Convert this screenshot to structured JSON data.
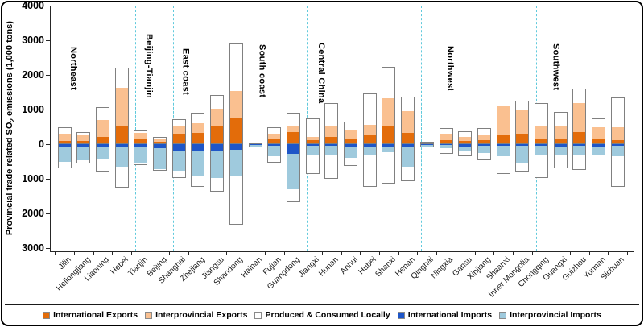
{
  "figure": {
    "y_axis": {
      "title_main": "Provincial trade related SO",
      "title_sub": "2",
      "title_rest": " emissions  (1,000 tons)",
      "ticks": [
        {
          "value": 4000,
          "label": "4000"
        },
        {
          "value": 3000,
          "label": "3000"
        },
        {
          "value": 2000,
          "label": "2000"
        },
        {
          "value": 1000,
          "label": "1000"
        },
        {
          "value": 0,
          "label": "0"
        },
        {
          "value": -1000,
          "label": "1000"
        },
        {
          "value": -2000,
          "label": "2000"
        },
        {
          "value": -3000,
          "label": "3000"
        }
      ]
    },
    "legend": [
      {
        "label": "International Exports",
        "color": "#E36C0A"
      },
      {
        "label": "Interprovincial Exports",
        "color": "#FAC090"
      },
      {
        "label": "Produced & Consumed Locally",
        "color": "#FFFFFF"
      },
      {
        "label": "International Imports",
        "color": "#1E56C8"
      },
      {
        "label": "Interprovincial Imports",
        "color": "#9FCADD"
      }
    ]
  },
  "chart_data": {
    "type": "bar",
    "stacked": true,
    "unit": "1,000 tons",
    "ylim": [
      -3000,
      4000
    ],
    "grid": false,
    "note": "Positive side stacks international_exports + interprovincial_exports + produced_consumed_locally; negative side stacks international_imports + interprovincial_imports + produced_consumed_locally (white box drawn on both sides).",
    "colors": {
      "international_exports": "#E36C0A",
      "interprovincial_exports": "#FAC090",
      "produced_consumed_locally": "#FFFFFF",
      "international_imports": "#1E56C8",
      "interprovincial_imports": "#9FCADD",
      "bar_border": "#808080",
      "separator": "#5fc9dc",
      "axis": "#262626"
    },
    "regions": [
      {
        "label": "Northeast",
        "from": 0,
        "to": 3,
        "label_pos": 0.5,
        "label_top": 58
      },
      {
        "label": "Beijing-Tianjin",
        "from": 4,
        "to": 5,
        "label_pos": 4.47,
        "label_top": 42
      },
      {
        "label": "East coast",
        "from": 6,
        "to": 9,
        "label_pos": 6.4,
        "label_top": 60
      },
      {
        "label": "South coast",
        "from": 10,
        "to": 12,
        "label_pos": 10.4,
        "label_top": 55
      },
      {
        "label": "Central China",
        "from": 13,
        "to": 18,
        "label_pos": 13.5,
        "label_top": 53
      },
      {
        "label": "Northwest",
        "from": 19,
        "to": 24,
        "label_pos": 20.25,
        "label_top": 57
      },
      {
        "label": "Southwest",
        "from": 25,
        "to": 29,
        "label_pos": 25.8,
        "label_top": 54
      }
    ],
    "separators_after": [
      3,
      5,
      9,
      12,
      18,
      24
    ],
    "provinces": [
      {
        "name": "Jilin",
        "international_exports": 60,
        "interprovincial_exports": 210,
        "produced_consumed_locally": 210,
        "international_imports": 60,
        "interprovincial_imports": 460
      },
      {
        "name": "Heilongjiang",
        "international_exports": 80,
        "interprovincial_exports": 150,
        "produced_consumed_locally": 120,
        "international_imports": 60,
        "interprovincial_imports": 400
      },
      {
        "name": "Liaoning",
        "international_exports": 190,
        "interprovincial_exports": 490,
        "produced_consumed_locally": 380,
        "international_imports": 90,
        "interprovincial_imports": 340
      },
      {
        "name": "Hebei",
        "international_exports": 500,
        "interprovincial_exports": 1100,
        "produced_consumed_locally": 620,
        "international_imports": 90,
        "interprovincial_imports": 570
      },
      {
        "name": "Tianjin",
        "international_exports": 140,
        "interprovincial_exports": 170,
        "produced_consumed_locally": 90,
        "international_imports": 70,
        "interprovincial_imports": 460
      },
      {
        "name": "Beijing",
        "international_exports": 50,
        "interprovincial_exports": 80,
        "produced_consumed_locally": 70,
        "international_imports": 110,
        "interprovincial_imports": 620
      },
      {
        "name": "Shanghai",
        "international_exports": 280,
        "interprovincial_exports": 200,
        "produced_consumed_locally": 240,
        "international_imports": 200,
        "interprovincial_imports": 560
      },
      {
        "name": "Zhejiang",
        "international_exports": 300,
        "interprovincial_exports": 270,
        "produced_consumed_locally": 330,
        "international_imports": 190,
        "interprovincial_imports": 740
      },
      {
        "name": "Jiangsu",
        "international_exports": 500,
        "interprovincial_exports": 500,
        "produced_consumed_locally": 420,
        "international_imports": 210,
        "interprovincial_imports": 760
      },
      {
        "name": "Shandong",
        "international_exports": 750,
        "interprovincial_exports": 750,
        "produced_consumed_locally": 1400,
        "international_imports": 160,
        "interprovincial_imports": 780
      },
      {
        "name": "Hainan",
        "international_exports": 10,
        "interprovincial_exports": 20,
        "produced_consumed_locally": 25,
        "international_imports": 20,
        "interprovincial_imports": 50
      },
      {
        "name": "Fujian",
        "international_exports": 140,
        "interprovincial_exports": 140,
        "produced_consumed_locally": 200,
        "international_imports": 50,
        "interprovincial_imports": 300
      },
      {
        "name": "Guangdong",
        "international_exports": 320,
        "interprovincial_exports": 190,
        "produced_consumed_locally": 390,
        "international_imports": 280,
        "interprovincial_imports": 1030
      },
      {
        "name": "Jiangxi",
        "international_exports": 90,
        "interprovincial_exports": 100,
        "produced_consumed_locally": 550,
        "international_imports": 45,
        "interprovincial_imports": 290
      },
      {
        "name": "Hunan",
        "international_exports": 180,
        "interprovincial_exports": 320,
        "produced_consumed_locally": 690,
        "international_imports": 45,
        "interprovincial_imports": 280
      },
      {
        "name": "Anhui",
        "international_exports": 140,
        "interprovincial_exports": 240,
        "produced_consumed_locally": 260,
        "international_imports": 90,
        "interprovincial_imports": 310
      },
      {
        "name": "Hubei",
        "international_exports": 230,
        "interprovincial_exports": 310,
        "produced_consumed_locally": 930,
        "international_imports": 100,
        "interprovincial_imports": 220
      },
      {
        "name": "Shanxi",
        "international_exports": 500,
        "interprovincial_exports": 800,
        "produced_consumed_locally": 930,
        "international_imports": 80,
        "interprovincial_imports": 150
      },
      {
        "name": "Henan",
        "international_exports": 310,
        "interprovincial_exports": 610,
        "produced_consumed_locally": 450,
        "international_imports": 80,
        "interprovincial_imports": 560
      },
      {
        "name": "Qinghai",
        "international_exports": 10,
        "interprovincial_exports": 25,
        "produced_consumed_locally": 30,
        "international_imports": 15,
        "interprovincial_imports": 60
      },
      {
        "name": "Ningxia",
        "international_exports": 100,
        "interprovincial_exports": 180,
        "produced_consumed_locally": 180,
        "international_imports": 30,
        "interprovincial_imports": 90
      },
      {
        "name": "Gansu",
        "international_exports": 80,
        "interprovincial_exports": 100,
        "produced_consumed_locally": 200,
        "international_imports": 60,
        "interprovincial_imports": 120
      },
      {
        "name": "Xinjiang",
        "international_exports": 100,
        "interprovincial_exports": 130,
        "produced_consumed_locally": 240,
        "international_imports": 45,
        "interprovincial_imports": 200
      },
      {
        "name": "Shaanxi",
        "international_exports": 230,
        "interprovincial_exports": 830,
        "produced_consumed_locally": 550,
        "international_imports": 45,
        "interprovincial_imports": 295
      },
      {
        "name": "Inner Mongolia",
        "international_exports": 280,
        "interprovincial_exports": 705,
        "produced_consumed_locally": 265,
        "international_imports": 45,
        "interprovincial_imports": 495
      },
      {
        "name": "Chongqing",
        "international_exports": 150,
        "interprovincial_exports": 360,
        "produced_consumed_locally": 670,
        "international_imports": 50,
        "interprovincial_imports": 270
      },
      {
        "name": "Guangxi",
        "international_exports": 150,
        "interprovincial_exports": 355,
        "produced_consumed_locally": 415,
        "international_imports": 75,
        "interprovincial_imports": 230
      },
      {
        "name": "Guizhou",
        "international_exports": 330,
        "interprovincial_exports": 825,
        "produced_consumed_locally": 460,
        "international_imports": 55,
        "interprovincial_imports": 250
      },
      {
        "name": "Yunnan",
        "international_exports": 150,
        "interprovincial_exports": 310,
        "produced_consumed_locally": 275,
        "international_imports": 75,
        "interprovincial_imports": 230
      },
      {
        "name": "Sichuan",
        "international_exports": 100,
        "interprovincial_exports": 360,
        "produced_consumed_locally": 900,
        "international_imports": 55,
        "interprovincial_imports": 290
      }
    ]
  }
}
